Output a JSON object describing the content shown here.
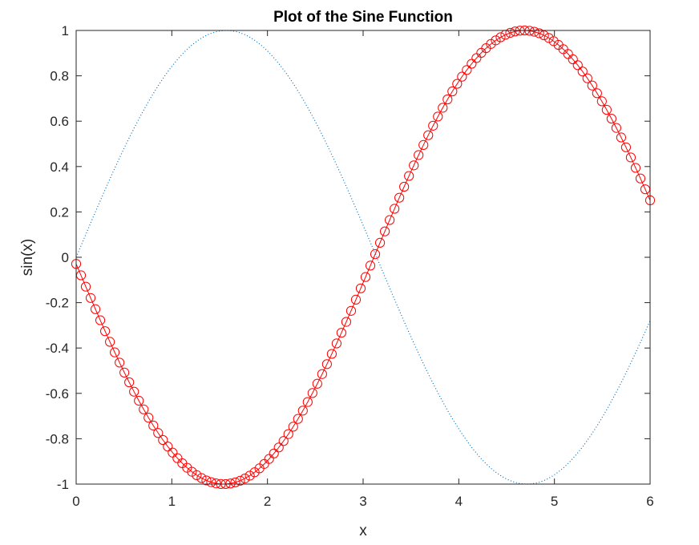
{
  "chart_data": {
    "type": "line",
    "title": "Plot of the Sine Function",
    "xlabel": "x",
    "ylabel": "sin(x)",
    "xlim": [
      0,
      6
    ],
    "ylim": [
      -1,
      1
    ],
    "xticks": [
      0,
      1,
      2,
      3,
      4,
      5,
      6
    ],
    "xtick_labels": [
      "0",
      "1",
      "2",
      "3",
      "4",
      "5",
      "6"
    ],
    "yticks": [
      1,
      0.8,
      0.6,
      0.4,
      0.2,
      0,
      -0.2,
      -0.4,
      -0.6,
      -0.8,
      -1
    ],
    "ytick_labels": [
      "1",
      "0.8",
      "0.6",
      "0.4",
      "0.2",
      "0",
      "-0.2",
      "-0.4",
      "-0.6",
      "-0.8",
      "-1"
    ],
    "grid": false,
    "legend": "none",
    "series": [
      {
        "function": "sin(x)",
        "x_range": [
          0,
          6
        ],
        "samples": 240,
        "line_style": "dotted",
        "marker": "none",
        "color": "#0072BD"
      },
      {
        "function": "cos(x + 1.6)",
        "x_range": [
          0,
          6
        ],
        "samples": 120,
        "line_style": "solid",
        "marker": "circle",
        "color": "#FF0000"
      }
    ],
    "colors": {
      "axes": "#262626",
      "background": "#ffffff"
    }
  }
}
